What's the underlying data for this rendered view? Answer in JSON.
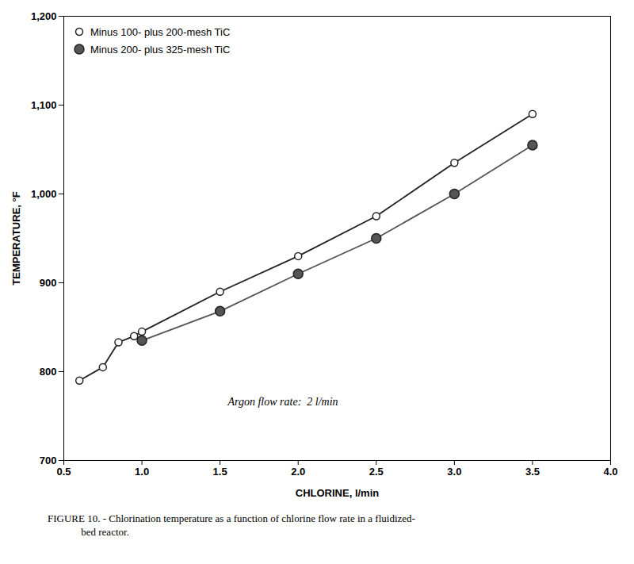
{
  "chart_data": {
    "type": "line",
    "xlabel": "CHLORINE, l/min",
    "ylabel": "TEMPERATURE, °F",
    "series": [
      {
        "name": "Minus 100- plus 200-mesh TiC",
        "color": "#222222",
        "marker": "circle_open",
        "x": [
          0.6,
          0.75,
          0.85,
          0.95,
          1.0,
          1.5,
          2.0,
          2.5,
          3.0,
          3.5
        ],
        "values": [
          790,
          805,
          833,
          840,
          845,
          890,
          930,
          975,
          1035,
          1090
        ]
      },
      {
        "name": "Minus 200- plus 325-mesh TiC",
        "color": "#555555",
        "marker": "circle",
        "x": [
          1.0,
          1.5,
          2.0,
          2.5,
          3.0,
          3.5
        ],
        "values": [
          835,
          868,
          910,
          950,
          1000,
          1055
        ]
      }
    ],
    "xlim": [
      0.5,
      4.0
    ],
    "ylim": [
      700,
      1200
    ],
    "xticks": [
      0.5,
      {
        "value": 1.0,
        "label": "1.0"
      },
      1.5,
      {
        "value": 2.0,
        "label": "2.0"
      },
      2.5,
      {
        "value": 3.0,
        "label": "3.0"
      },
      3.5,
      {
        "value": 4.0,
        "label": "4.0"
      }
    ],
    "yticks": [
      700,
      800,
      900,
      {
        "value": 1000,
        "label": "1,000"
      },
      {
        "value": 1100,
        "label": "1,100"
      },
      {
        "value": 1200,
        "label": "1,200"
      }
    ],
    "annotations": [
      {
        "text": "Argon flow rate:  2 l/min",
        "x": 1.55,
        "y": 762
      }
    ],
    "legend": "upper left",
    "grid": false,
    "caption": [
      "FIGURE 10. - Chlorination temperature as a function of chlorine flow rate in a fluidized-",
      "             bed reactor."
    ]
  }
}
